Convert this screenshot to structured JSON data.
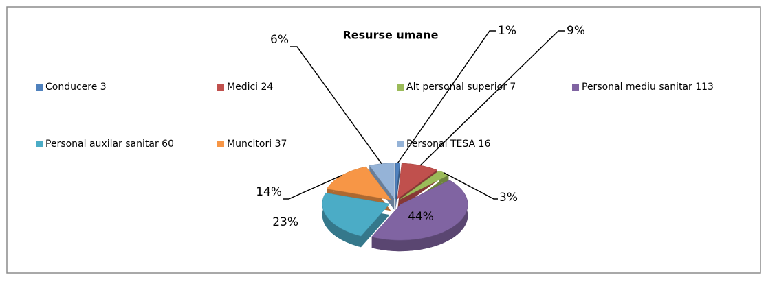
{
  "chart_data": {
    "type": "pie",
    "title": "Resurse umane",
    "categories": [
      "Conducere 3",
      "Medici 24",
      "Alt personal superior 7",
      "Personal mediu sanitar 113",
      "Personal auxilar sanitar 60",
      "Muncitori 37",
      "Personal TESA 16"
    ],
    "values": [
      1,
      9,
      3,
      44,
      23,
      14,
      6
    ],
    "value_labels": [
      "1%",
      "9%",
      "3%",
      "44%",
      "23%",
      "14%",
      "6%"
    ],
    "colors": [
      "#4f81bd",
      "#c0504d",
      "#9bbb59",
      "#8064a2",
      "#4bacc6",
      "#f79646",
      "#95b3d7"
    ]
  }
}
